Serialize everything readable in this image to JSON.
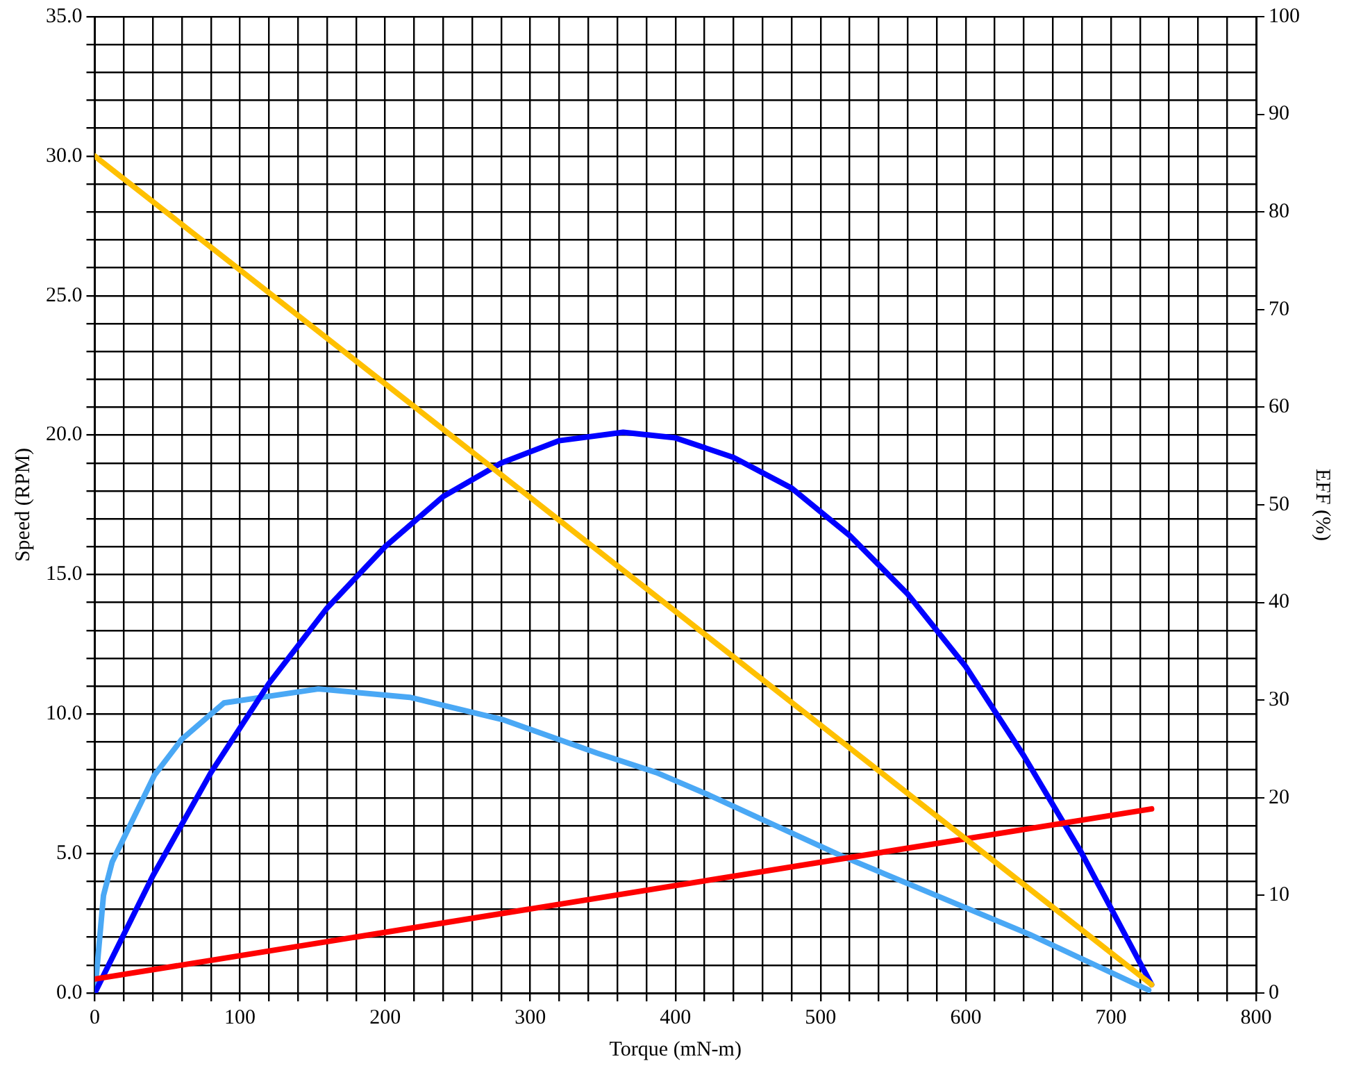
{
  "chart_data": {
    "type": "line",
    "xlabel": "Torque (mN-m)",
    "ylabel": "Speed (RPM)",
    "y2label": "EFF (%)",
    "xlim": [
      0,
      800
    ],
    "xticks": [
      0,
      {
        "value": 20,
        "label": null
      },
      {
        "value": 40,
        "label": null
      },
      {
        "value": 60,
        "label": null
      },
      {
        "value": 80,
        "label": null
      },
      100,
      {
        "value": 120,
        "label": null
      },
      {
        "value": 140,
        "label": null
      },
      {
        "value": 160,
        "label": null
      },
      {
        "value": 180,
        "label": null
      },
      200,
      {
        "value": 220,
        "label": null
      },
      {
        "value": 240,
        "label": null
      },
      {
        "value": 260,
        "label": null
      },
      {
        "value": 280,
        "label": null
      },
      300,
      {
        "value": 320,
        "label": null
      },
      {
        "value": 340,
        "label": null
      },
      {
        "value": 360,
        "label": null
      },
      {
        "value": 380,
        "label": null
      },
      400,
      {
        "value": 420,
        "label": null
      },
      {
        "value": 440,
        "label": null
      },
      {
        "value": 460,
        "label": null
      },
      {
        "value": 480,
        "label": null
      },
      500,
      {
        "value": 520,
        "label": null
      },
      {
        "value": 540,
        "label": null
      },
      {
        "value": 560,
        "label": null
      },
      {
        "value": 580,
        "label": null
      },
      600,
      {
        "value": 620,
        "label": null
      },
      {
        "value": 640,
        "label": null
      },
      {
        "value": 660,
        "label": null
      },
      {
        "value": 680,
        "label": null
      },
      700,
      {
        "value": 720,
        "label": null
      },
      {
        "value": 740,
        "label": null
      },
      {
        "value": 760,
        "label": null
      },
      {
        "value": 780,
        "label": null
      },
      800
    ],
    "ylim": [
      0,
      35
    ],
    "yticks": [
      {
        "value": 0,
        "label": "0.0"
      },
      {
        "value": 1,
        "label": null
      },
      {
        "value": 2,
        "label": null
      },
      {
        "value": 3,
        "label": null
      },
      {
        "value": 4,
        "label": null
      },
      {
        "value": 5,
        "label": "5.0"
      },
      {
        "value": 6,
        "label": null
      },
      {
        "value": 7,
        "label": null
      },
      {
        "value": 8,
        "label": null
      },
      {
        "value": 9,
        "label": null
      },
      {
        "value": 10,
        "label": "10.0"
      },
      {
        "value": 11,
        "label": null
      },
      {
        "value": 12,
        "label": null
      },
      {
        "value": 13,
        "label": null
      },
      {
        "value": 14,
        "label": null
      },
      {
        "value": 15,
        "label": "15.0"
      },
      {
        "value": 16,
        "label": null
      },
      {
        "value": 17,
        "label": null
      },
      {
        "value": 18,
        "label": null
      },
      {
        "value": 19,
        "label": null
      },
      {
        "value": 20,
        "label": "20.0"
      },
      {
        "value": 21,
        "label": null
      },
      {
        "value": 22,
        "label": null
      },
      {
        "value": 23,
        "label": null
      },
      {
        "value": 24,
        "label": null
      },
      {
        "value": 25,
        "label": "25.0"
      },
      {
        "value": 26,
        "label": null
      },
      {
        "value": 27,
        "label": null
      },
      {
        "value": 28,
        "label": null
      },
      {
        "value": 29,
        "label": null
      },
      {
        "value": 30,
        "label": "30.0"
      },
      {
        "value": 31,
        "label": null
      },
      {
        "value": 32,
        "label": null
      },
      {
        "value": 33,
        "label": null
      },
      {
        "value": 34,
        "label": null
      },
      {
        "value": 35,
        "label": "35.0"
      }
    ],
    "y2lim": [
      0,
      100
    ],
    "y2ticks": [
      0,
      10,
      20,
      30,
      40,
      50,
      60,
      70,
      80,
      90,
      100
    ],
    "grid": true,
    "legend": false,
    "marker": "none",
    "line_style": "solid",
    "series": [
      {
        "color": "#ffc000",
        "x": [
          0,
          728
        ],
        "values": [
          30.0,
          0.3
        ]
      },
      {
        "color": "#ff0000",
        "x": [
          0,
          728
        ],
        "values": [
          0.5,
          6.6
        ]
      },
      {
        "color": "#0000ff",
        "x": [
          0,
          40,
          80,
          120,
          160,
          200,
          240,
          280,
          320,
          364,
          400,
          440,
          480,
          520,
          560,
          600,
          640,
          680,
          728
        ],
        "values": [
          0.0,
          4.2,
          7.9,
          11.1,
          13.8,
          16.0,
          17.8,
          19.0,
          19.8,
          20.1,
          19.9,
          19.2,
          18.1,
          16.4,
          14.3,
          11.7,
          8.5,
          5.0,
          0.3
        ]
      },
      {
        "color": "#4aa8f5",
        "x": [
          0,
          6,
          12,
          41,
          60,
          89,
          154,
          217,
          281,
          346,
          387,
          423,
          515,
          644,
          726
        ],
        "values": [
          0.0,
          3.5,
          4.7,
          7.8,
          9.1,
          10.4,
          10.9,
          10.6,
          9.8,
          8.6,
          7.9,
          7.1,
          4.9,
          2.1,
          0.1
        ]
      }
    ]
  }
}
